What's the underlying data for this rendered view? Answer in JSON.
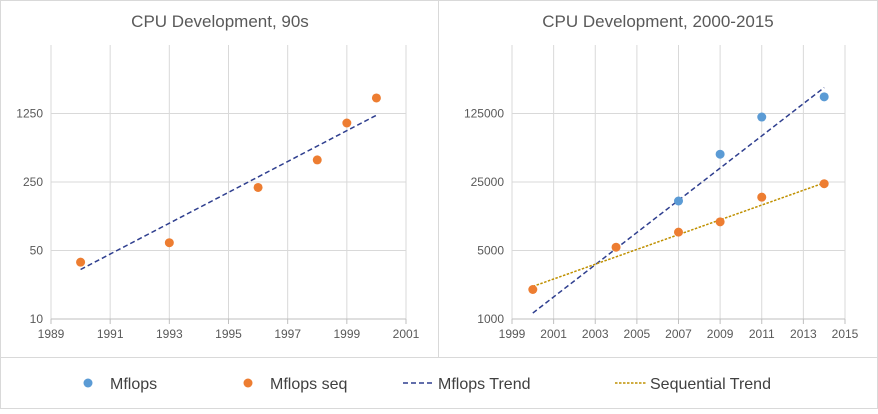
{
  "legend": {
    "placement": "bottom",
    "items": [
      {
        "label": "Mflops",
        "kind": "marker",
        "color": "#5B9BD5"
      },
      {
        "label": "Mflops seq",
        "kind": "marker",
        "color": "#ED7D31"
      },
      {
        "label": "Mflops Trend",
        "kind": "dashed-line",
        "color": "#2F3F8F"
      },
      {
        "label": "Sequential Trend",
        "kind": "dotted-line",
        "color": "#BF9000"
      }
    ]
  },
  "chart_data": [
    {
      "type": "scatter",
      "title": "CPU Development, 90s",
      "xlabel": "",
      "ylabel": "",
      "x_scale": "linear",
      "y_scale": "log",
      "xlim": [
        1989,
        2001
      ],
      "ylim": [
        10,
        6250
      ],
      "x_ticks": [
        1989,
        1991,
        1993,
        1995,
        1997,
        1999,
        2001
      ],
      "y_ticks": [
        10,
        50,
        250,
        1250
      ],
      "grid": true,
      "series": [
        {
          "name": "Mflops seq",
          "color": "#ED7D31",
          "points": [
            [
              1990,
              38
            ],
            [
              1993,
              60
            ],
            [
              1996,
              220
            ],
            [
              1998,
              420
            ],
            [
              1999,
              1000
            ],
            [
              2000,
              1800
            ]
          ]
        }
      ],
      "trendlines": [
        {
          "name": "Mflops Trend",
          "style": "dashed",
          "color": "#2F3F8F",
          "from": [
            1990,
            32
          ],
          "to": [
            2000,
            1200
          ]
        }
      ]
    },
    {
      "type": "scatter",
      "title": "CPU Development, 2000-2015",
      "xlabel": "",
      "ylabel": "",
      "x_scale": "linear",
      "y_scale": "log",
      "xlim": [
        1999,
        2015
      ],
      "ylim": [
        1000,
        625000
      ],
      "x_ticks": [
        1999,
        2001,
        2003,
        2005,
        2007,
        2009,
        2011,
        2013,
        2015
      ],
      "y_ticks": [
        1000,
        5000,
        25000,
        125000
      ],
      "grid": true,
      "series": [
        {
          "name": "Mflops",
          "color": "#5B9BD5",
          "points": [
            [
              2007,
              16000
            ],
            [
              2009,
              48000
            ],
            [
              2011,
              115000
            ],
            [
              2014,
              185000
            ]
          ]
        },
        {
          "name": "Mflops seq",
          "color": "#ED7D31",
          "points": [
            [
              2000,
              2000
            ],
            [
              2004,
              5400
            ],
            [
              2007,
              7700
            ],
            [
              2009,
              9800
            ],
            [
              2011,
              17500
            ],
            [
              2014,
              24000
            ]
          ]
        }
      ],
      "trendlines": [
        {
          "name": "Mflops Trend",
          "style": "dashed",
          "color": "#2F3F8F",
          "from": [
            2000,
            1150
          ],
          "to": [
            2014,
            230000
          ]
        },
        {
          "name": "Sequential Trend",
          "style": "dotted",
          "color": "#BF9000",
          "from": [
            2000,
            2150
          ],
          "to": [
            2014,
            24500
          ]
        }
      ]
    }
  ]
}
